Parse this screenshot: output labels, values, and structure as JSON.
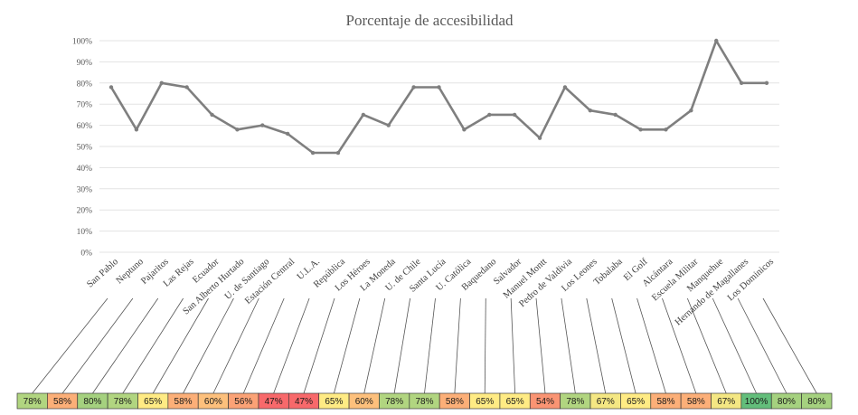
{
  "chart_data": {
    "type": "line",
    "title": "Porcentaje de accesibilidad",
    "xlabel": "",
    "ylabel": "",
    "ylim": [
      0,
      100
    ],
    "y_ticks": [
      "0%",
      "10%",
      "20%",
      "30%",
      "40%",
      "50%",
      "60%",
      "70%",
      "80%",
      "90%",
      "100%"
    ],
    "grid": true,
    "categories": [
      "San Pablo",
      "Neptuno",
      "Pajaritos",
      "Las Rejas",
      "Ecuador",
      "San Alberto Hurtado",
      "U. de Santiago",
      "Estación Central",
      "U.L.A.",
      "República",
      "Los Héroes",
      "La Moneda",
      "U. de Chile",
      "Santa Lucía",
      "U. Católica",
      "Baquedano",
      "Salvador",
      "Manuel Montt",
      "Pedro de Valdivia",
      "Los Leones",
      "Tobalaba",
      "El Golf",
      "Alcántara",
      "Escuela Militar",
      "Manquehue",
      "Hernando de Magallanes",
      "Los Dominicos"
    ],
    "values": [
      78,
      58,
      80,
      78,
      65,
      58,
      60,
      56,
      47,
      47,
      65,
      60,
      78,
      78,
      58,
      65,
      65,
      54,
      78,
      67,
      65,
      58,
      58,
      67,
      100,
      80,
      80
    ],
    "value_labels": [
      "78%",
      "58%",
      "80%",
      "78%",
      "65%",
      "58%",
      "60%",
      "56%",
      "47%",
      "47%",
      "65%",
      "60%",
      "78%",
      "78%",
      "58%",
      "65%",
      "65%",
      "54%",
      "78%",
      "67%",
      "65%",
      "58%",
      "58%",
      "67%",
      "100%",
      "80%",
      "80%"
    ],
    "line_color": "#7f7f7f",
    "grid_color": "#e3e3e3",
    "heat_colors": {
      "47": "#f8696b",
      "54": "#fa9473",
      "56": "#fba276",
      "58": "#fcaf78",
      "60": "#fdc07c",
      "65": "#ffeb84",
      "67": "#f4e783",
      "78": "#b1d580",
      "80": "#a5d17f",
      "100": "#63be7b"
    }
  }
}
